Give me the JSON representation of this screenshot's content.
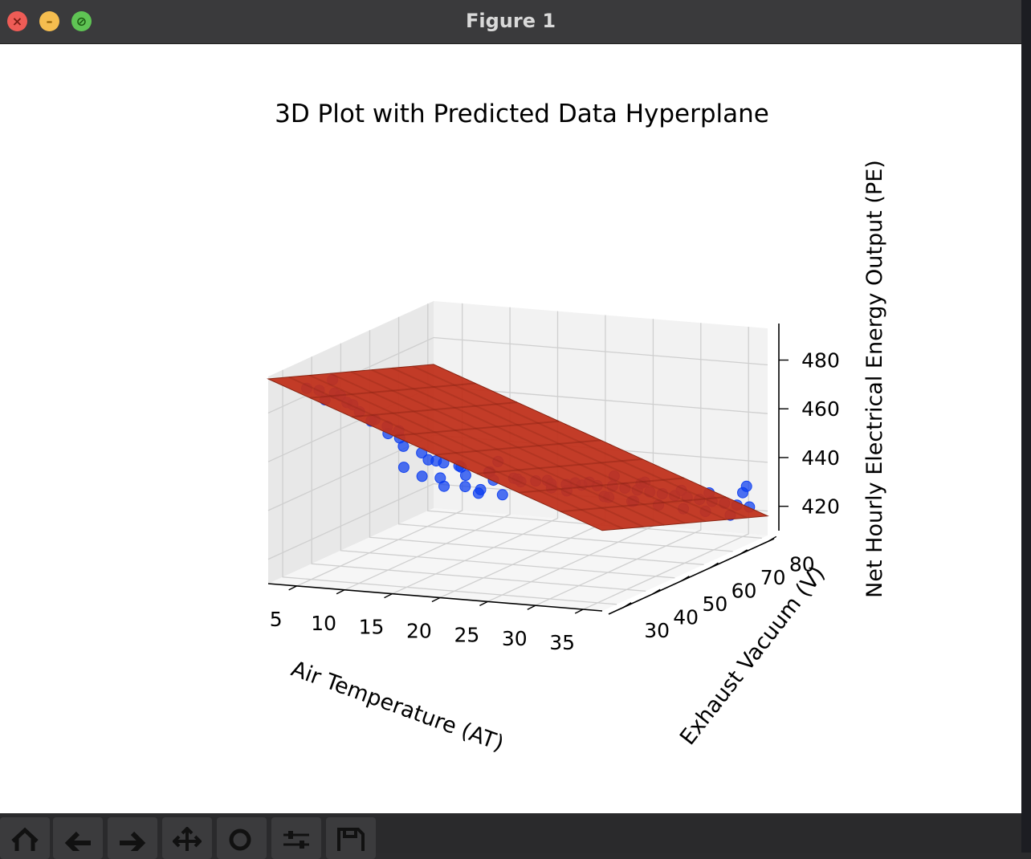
{
  "window": {
    "title": "Figure 1"
  },
  "toolbar": {
    "buttons": [
      {
        "name": "home-icon"
      },
      {
        "name": "back-arrow-icon"
      },
      {
        "name": "forward-arrow-icon"
      },
      {
        "name": "pan-icon"
      },
      {
        "name": "zoom-icon"
      },
      {
        "name": "configure-subplots-icon"
      },
      {
        "name": "save-icon"
      }
    ]
  },
  "chart_data": {
    "type": "scatter",
    "title": "3D Plot with Predicted Data Hyperplane",
    "xlabel": "Air Temperature (AT)",
    "ylabel": "Exhaust Vacuum (V)",
    "zlabel": "Net Hourly Electrical Energy Output (PE)",
    "xticks": [
      "5",
      "10",
      "15",
      "20",
      "25",
      "30",
      "35"
    ],
    "yticks": [
      "30",
      "40",
      "50",
      "60",
      "70",
      "80"
    ],
    "zticks": [
      "420",
      "440",
      "460",
      "480"
    ],
    "xlim": [
      2,
      37
    ],
    "ylim": [
      25,
      82
    ],
    "zlim": [
      410,
      495
    ],
    "grid": true,
    "colors": {
      "points": "#0a3cf0",
      "plane": "#c0321c"
    },
    "series": [
      {
        "type": "scatter3d",
        "points": [
          [
            3,
            35,
            485
          ],
          [
            4,
            36,
            484
          ],
          [
            5,
            38,
            482
          ],
          [
            6,
            39,
            478
          ],
          [
            5,
            40,
            480
          ],
          [
            6,
            41,
            476
          ],
          [
            7,
            40,
            474
          ],
          [
            8,
            42,
            470
          ],
          [
            9,
            43,
            467
          ],
          [
            10,
            40,
            466
          ],
          [
            10,
            44,
            462
          ],
          [
            11,
            42,
            460
          ],
          [
            12,
            45,
            456
          ],
          [
            13,
            44,
            454
          ],
          [
            14,
            46,
            452
          ],
          [
            15,
            48,
            450
          ],
          [
            16,
            47,
            447
          ],
          [
            17,
            52,
            446
          ],
          [
            18,
            50,
            444
          ],
          [
            19,
            55,
            442
          ],
          [
            20,
            58,
            440
          ],
          [
            21,
            60,
            438
          ],
          [
            22,
            62,
            437
          ],
          [
            23,
            64,
            436
          ],
          [
            24,
            66,
            435
          ],
          [
            25,
            68,
            434
          ],
          [
            26,
            69,
            433
          ],
          [
            27,
            70,
            432
          ],
          [
            28,
            71,
            431
          ],
          [
            29,
            72,
            430
          ],
          [
            30,
            73,
            429
          ],
          [
            31,
            74,
            428
          ],
          [
            32,
            75,
            427
          ],
          [
            33,
            76,
            426
          ],
          [
            34,
            77,
            425
          ],
          [
            35,
            78,
            424
          ],
          [
            36,
            79,
            423
          ],
          [
            8,
            52,
            445
          ],
          [
            9,
            55,
            440
          ],
          [
            10,
            58,
            438
          ],
          [
            11,
            56,
            436
          ],
          [
            12,
            60,
            434
          ],
          [
            13,
            62,
            432
          ],
          [
            14,
            58,
            433
          ],
          [
            15,
            63,
            430
          ],
          [
            12,
            50,
            450
          ],
          [
            14,
            52,
            447
          ],
          [
            16,
            55,
            444
          ],
          [
            18,
            57,
            441
          ],
          [
            20,
            62,
            438
          ],
          [
            22,
            65,
            436
          ],
          [
            24,
            70,
            428
          ],
          [
            26,
            72,
            426
          ],
          [
            28,
            74,
            424
          ],
          [
            30,
            76,
            422
          ],
          [
            32,
            77,
            421
          ],
          [
            34,
            79,
            419
          ],
          [
            25,
            60,
            440
          ],
          [
            28,
            68,
            436
          ],
          [
            31,
            72,
            432
          ],
          [
            33,
            75,
            430
          ],
          [
            35,
            80,
            428
          ],
          [
            36,
            78,
            432
          ],
          [
            20,
            45,
            455
          ],
          [
            6,
            34,
            490
          ],
          [
            4,
            38,
            479
          ],
          [
            7,
            44,
            468
          ],
          [
            9,
            47,
            463
          ],
          [
            22,
            75,
            425
          ],
          [
            24,
            78,
            422
          ],
          [
            18,
            70,
            430
          ],
          [
            16,
            66,
            434
          ],
          [
            19,
            72,
            428
          ],
          [
            27,
            62,
            442
          ],
          [
            29,
            66,
            438
          ]
        ]
      },
      {
        "type": "plane",
        "name": "",
        "corners": [
          [
            2,
            25,
            494
          ],
          [
            37,
            25,
            443
          ],
          [
            37,
            82,
            418
          ],
          [
            2,
            82,
            469
          ]
        ]
      }
    ]
  }
}
